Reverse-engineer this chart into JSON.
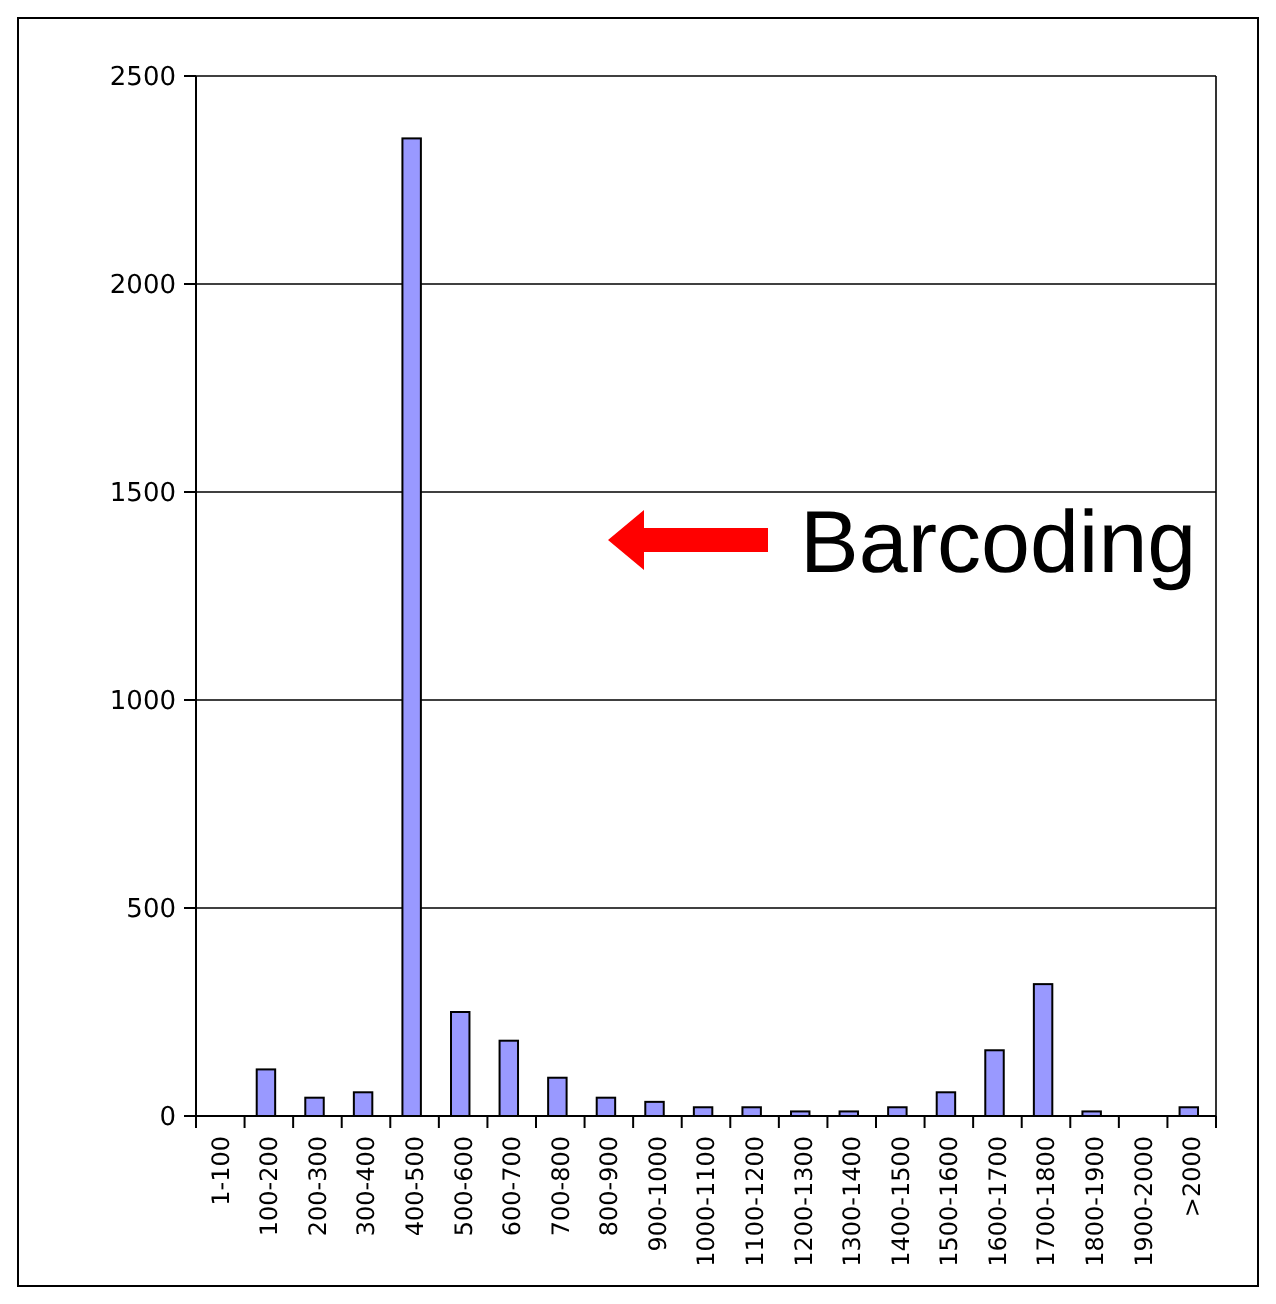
{
  "chart_data": {
    "type": "bar",
    "categories": [
      "1-100",
      "100-200",
      "200-300",
      "300-400",
      "400-500",
      "500-600",
      "600-700",
      "700-800",
      "800-900",
      "900-1000",
      "1000-1100",
      "1100-1200",
      "1200-1300",
      "1300-1400",
      "1400-1500",
      "1500-1600",
      "1600-1700",
      "1700-1800",
      "1800-1900",
      "1900-2000",
      ">2000"
    ],
    "values": [
      0,
      112,
      44,
      57,
      2350,
      250,
      181,
      92,
      44,
      34,
      21,
      21,
      11,
      11,
      21,
      57,
      158,
      317,
      11,
      0,
      21
    ],
    "color": "#9999ff",
    "ylim": [
      0,
      2500
    ],
    "yticks": [
      0,
      500,
      1000,
      1500,
      2000,
      2500
    ],
    "grid": "y",
    "annotations": [
      "Barcoding"
    ]
  }
}
